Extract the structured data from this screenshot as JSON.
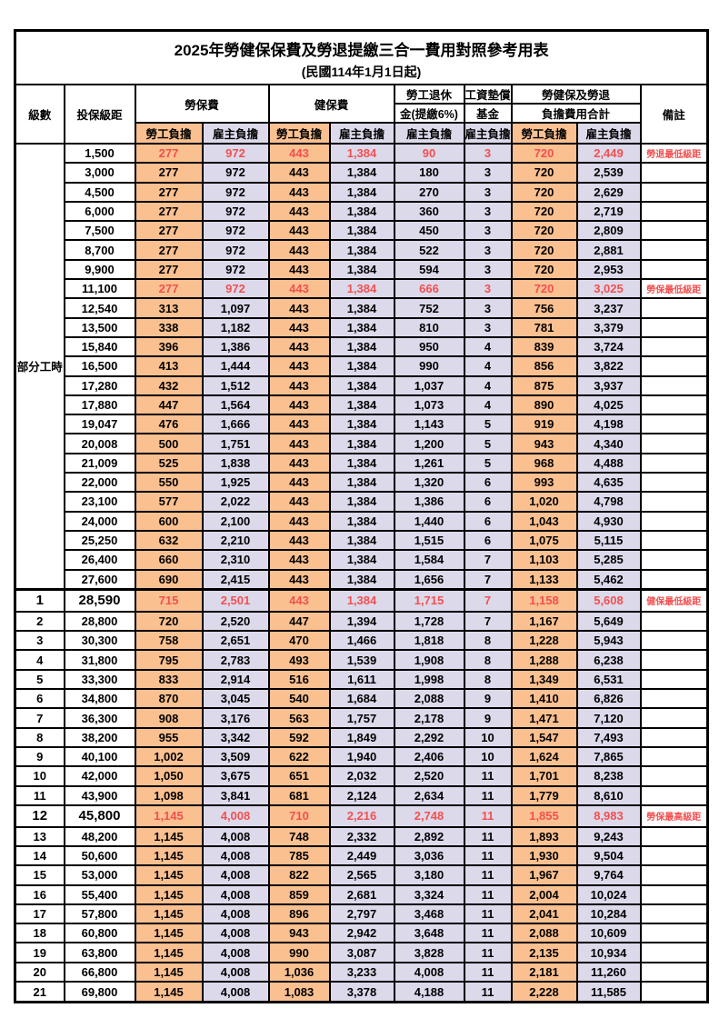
{
  "title": "2025年勞健保保費及勞退提繳三合一費用對照參考用表",
  "subtitle": "(民國114年1月1日起)",
  "colors": {
    "employee_bg": "#FAC090",
    "employer_bg": "#DCD9EB",
    "highlight_red": "#F25050",
    "border": "#000000"
  },
  "header": {
    "level": "級數",
    "salary": "投保級距",
    "labor": "勞保費",
    "health": "健保費",
    "pension_line1": "勞工退休",
    "pension_line2": "金(提繳6%)",
    "fund_line1": "工資墊償",
    "fund_line2": "基金",
    "total_line1": "勞健保及勞退",
    "total_line2": "負擔費用合計",
    "note": "備註",
    "employee": "勞工負擔",
    "employer": "雇主負擔"
  },
  "table": {
    "part_time_label": "部分工時",
    "part_time_rowspan": 23,
    "value_columns": [
      "labor-fee-employee",
      "labor-fee-employer",
      "health-fee-employee",
      "health-fee-employer",
      "pension-employer",
      "wage-fund-employer",
      "total-employee",
      "total-employer"
    ],
    "rows": [
      {
        "level": "",
        "salary": "1,500",
        "values": [
          "277",
          "972",
          "443",
          "1,384",
          "90",
          "3",
          "720",
          "2,449"
        ],
        "note": "勞退最低級距",
        "red": true,
        "big": false,
        "thick": false
      },
      {
        "level": "",
        "salary": "3,000",
        "values": [
          "277",
          "972",
          "443",
          "1,384",
          "180",
          "3",
          "720",
          "2,539"
        ],
        "note": "",
        "red": false,
        "big": false,
        "thick": false
      },
      {
        "level": "",
        "salary": "4,500",
        "values": [
          "277",
          "972",
          "443",
          "1,384",
          "270",
          "3",
          "720",
          "2,629"
        ],
        "note": "",
        "red": false,
        "big": false,
        "thick": false
      },
      {
        "level": "",
        "salary": "6,000",
        "values": [
          "277",
          "972",
          "443",
          "1,384",
          "360",
          "3",
          "720",
          "2,719"
        ],
        "note": "",
        "red": false,
        "big": false,
        "thick": false
      },
      {
        "level": "",
        "salary": "7,500",
        "values": [
          "277",
          "972",
          "443",
          "1,384",
          "450",
          "3",
          "720",
          "2,809"
        ],
        "note": "",
        "red": false,
        "big": false,
        "thick": false
      },
      {
        "level": "",
        "salary": "8,700",
        "values": [
          "277",
          "972",
          "443",
          "1,384",
          "522",
          "3",
          "720",
          "2,881"
        ],
        "note": "",
        "red": false,
        "big": false,
        "thick": false
      },
      {
        "level": "",
        "salary": "9,900",
        "values": [
          "277",
          "972",
          "443",
          "1,384",
          "594",
          "3",
          "720",
          "2,953"
        ],
        "note": "",
        "red": false,
        "big": false,
        "thick": false
      },
      {
        "level": "",
        "salary": "11,100",
        "values": [
          "277",
          "972",
          "443",
          "1,384",
          "666",
          "3",
          "720",
          "3,025"
        ],
        "note": "勞保最低級距",
        "red": true,
        "big": false,
        "thick": false
      },
      {
        "level": "",
        "salary": "12,540",
        "values": [
          "313",
          "1,097",
          "443",
          "1,384",
          "752",
          "3",
          "756",
          "3,237"
        ],
        "note": "",
        "red": false,
        "big": false,
        "thick": false
      },
      {
        "level": "",
        "salary": "13,500",
        "values": [
          "338",
          "1,182",
          "443",
          "1,384",
          "810",
          "3",
          "781",
          "3,379"
        ],
        "note": "",
        "red": false,
        "big": false,
        "thick": false
      },
      {
        "level": "",
        "salary": "15,840",
        "values": [
          "396",
          "1,386",
          "443",
          "1,384",
          "950",
          "4",
          "839",
          "3,724"
        ],
        "note": "",
        "red": false,
        "big": false,
        "thick": false
      },
      {
        "level": "",
        "salary": "16,500",
        "values": [
          "413",
          "1,444",
          "443",
          "1,384",
          "990",
          "4",
          "856",
          "3,822"
        ],
        "note": "",
        "red": false,
        "big": false,
        "thick": false
      },
      {
        "level": "",
        "salary": "17,280",
        "values": [
          "432",
          "1,512",
          "443",
          "1,384",
          "1,037",
          "4",
          "875",
          "3,937"
        ],
        "note": "",
        "red": false,
        "big": false,
        "thick": false
      },
      {
        "level": "",
        "salary": "17,880",
        "values": [
          "447",
          "1,564",
          "443",
          "1,384",
          "1,073",
          "4",
          "890",
          "4,025"
        ],
        "note": "",
        "red": false,
        "big": false,
        "thick": false
      },
      {
        "level": "",
        "salary": "19,047",
        "values": [
          "476",
          "1,666",
          "443",
          "1,384",
          "1,143",
          "5",
          "919",
          "4,198"
        ],
        "note": "",
        "red": false,
        "big": false,
        "thick": false
      },
      {
        "level": "",
        "salary": "20,008",
        "values": [
          "500",
          "1,751",
          "443",
          "1,384",
          "1,200",
          "5",
          "943",
          "4,340"
        ],
        "note": "",
        "red": false,
        "big": false,
        "thick": false
      },
      {
        "level": "",
        "salary": "21,009",
        "values": [
          "525",
          "1,838",
          "443",
          "1,384",
          "1,261",
          "5",
          "968",
          "4,488"
        ],
        "note": "",
        "red": false,
        "big": false,
        "thick": false
      },
      {
        "level": "",
        "salary": "22,000",
        "values": [
          "550",
          "1,925",
          "443",
          "1,384",
          "1,320",
          "6",
          "993",
          "4,635"
        ],
        "note": "",
        "red": false,
        "big": false,
        "thick": false
      },
      {
        "level": "",
        "salary": "23,100",
        "values": [
          "577",
          "2,022",
          "443",
          "1,384",
          "1,386",
          "6",
          "1,020",
          "4,798"
        ],
        "note": "",
        "red": false,
        "big": false,
        "thick": false
      },
      {
        "level": "",
        "salary": "24,000",
        "values": [
          "600",
          "2,100",
          "443",
          "1,384",
          "1,440",
          "6",
          "1,043",
          "4,930"
        ],
        "note": "",
        "red": false,
        "big": false,
        "thick": false
      },
      {
        "level": "",
        "salary": "25,250",
        "values": [
          "632",
          "2,210",
          "443",
          "1,384",
          "1,515",
          "6",
          "1,075",
          "5,115"
        ],
        "note": "",
        "red": false,
        "big": false,
        "thick": false
      },
      {
        "level": "",
        "salary": "26,400",
        "values": [
          "660",
          "2,310",
          "443",
          "1,384",
          "1,584",
          "7",
          "1,103",
          "5,285"
        ],
        "note": "",
        "red": false,
        "big": false,
        "thick": false
      },
      {
        "level": "",
        "salary": "27,600",
        "values": [
          "690",
          "2,415",
          "443",
          "1,384",
          "1,656",
          "7",
          "1,133",
          "5,462"
        ],
        "note": "",
        "red": false,
        "big": false,
        "thick": false
      },
      {
        "level": "1",
        "salary": "28,590",
        "values": [
          "715",
          "2,501",
          "443",
          "1,384",
          "1,715",
          "7",
          "1,158",
          "5,608"
        ],
        "note": "健保最低級距",
        "red": true,
        "big": true,
        "thick": true
      },
      {
        "level": "2",
        "salary": "28,800",
        "values": [
          "720",
          "2,520",
          "447",
          "1,394",
          "1,728",
          "7",
          "1,167",
          "5,649"
        ],
        "note": "",
        "red": false,
        "big": false,
        "thick": false
      },
      {
        "level": "3",
        "salary": "30,300",
        "values": [
          "758",
          "2,651",
          "470",
          "1,466",
          "1,818",
          "8",
          "1,228",
          "5,943"
        ],
        "note": "",
        "red": false,
        "big": false,
        "thick": false
      },
      {
        "level": "4",
        "salary": "31,800",
        "values": [
          "795",
          "2,783",
          "493",
          "1,539",
          "1,908",
          "8",
          "1,288",
          "6,238"
        ],
        "note": "",
        "red": false,
        "big": false,
        "thick": false
      },
      {
        "level": "5",
        "salary": "33,300",
        "values": [
          "833",
          "2,914",
          "516",
          "1,611",
          "1,998",
          "8",
          "1,349",
          "6,531"
        ],
        "note": "",
        "red": false,
        "big": false,
        "thick": false
      },
      {
        "level": "6",
        "salary": "34,800",
        "values": [
          "870",
          "3,045",
          "540",
          "1,684",
          "2,088",
          "9",
          "1,410",
          "6,826"
        ],
        "note": "",
        "red": false,
        "big": false,
        "thick": false
      },
      {
        "level": "7",
        "salary": "36,300",
        "values": [
          "908",
          "3,176",
          "563",
          "1,757",
          "2,178",
          "9",
          "1,471",
          "7,120"
        ],
        "note": "",
        "red": false,
        "big": false,
        "thick": false
      },
      {
        "level": "8",
        "salary": "38,200",
        "values": [
          "955",
          "3,342",
          "592",
          "1,849",
          "2,292",
          "10",
          "1,547",
          "7,493"
        ],
        "note": "",
        "red": false,
        "big": false,
        "thick": false
      },
      {
        "level": "9",
        "salary": "40,100",
        "values": [
          "1,002",
          "3,509",
          "622",
          "1,940",
          "2,406",
          "10",
          "1,624",
          "7,865"
        ],
        "note": "",
        "red": false,
        "big": false,
        "thick": false
      },
      {
        "level": "10",
        "salary": "42,000",
        "values": [
          "1,050",
          "3,675",
          "651",
          "2,032",
          "2,520",
          "11",
          "1,701",
          "8,238"
        ],
        "note": "",
        "red": false,
        "big": false,
        "thick": false
      },
      {
        "level": "11",
        "salary": "43,900",
        "values": [
          "1,098",
          "3,841",
          "681",
          "2,124",
          "2,634",
          "11",
          "1,779",
          "8,610"
        ],
        "note": "",
        "red": false,
        "big": false,
        "thick": false
      },
      {
        "level": "12",
        "salary": "45,800",
        "values": [
          "1,145",
          "4,008",
          "710",
          "2,216",
          "2,748",
          "11",
          "1,855",
          "8,983"
        ],
        "note": "勞保最高級距",
        "red": true,
        "big": true,
        "thick": false
      },
      {
        "level": "13",
        "salary": "48,200",
        "values": [
          "1,145",
          "4,008",
          "748",
          "2,332",
          "2,892",
          "11",
          "1,893",
          "9,243"
        ],
        "note": "",
        "red": false,
        "big": false,
        "thick": false
      },
      {
        "level": "14",
        "salary": "50,600",
        "values": [
          "1,145",
          "4,008",
          "785",
          "2,449",
          "3,036",
          "11",
          "1,930",
          "9,504"
        ],
        "note": "",
        "red": false,
        "big": false,
        "thick": false
      },
      {
        "level": "15",
        "salary": "53,000",
        "values": [
          "1,145",
          "4,008",
          "822",
          "2,565",
          "3,180",
          "11",
          "1,967",
          "9,764"
        ],
        "note": "",
        "red": false,
        "big": false,
        "thick": false
      },
      {
        "level": "16",
        "salary": "55,400",
        "values": [
          "1,145",
          "4,008",
          "859",
          "2,681",
          "3,324",
          "11",
          "2,004",
          "10,024"
        ],
        "note": "",
        "red": false,
        "big": false,
        "thick": false
      },
      {
        "level": "17",
        "salary": "57,800",
        "values": [
          "1,145",
          "4,008",
          "896",
          "2,797",
          "3,468",
          "11",
          "2,041",
          "10,284"
        ],
        "note": "",
        "red": false,
        "big": false,
        "thick": false
      },
      {
        "level": "18",
        "salary": "60,800",
        "values": [
          "1,145",
          "4,008",
          "943",
          "2,942",
          "3,648",
          "11",
          "2,088",
          "10,609"
        ],
        "note": "",
        "red": false,
        "big": false,
        "thick": false
      },
      {
        "level": "19",
        "salary": "63,800",
        "values": [
          "1,145",
          "4,008",
          "990",
          "3,087",
          "3,828",
          "11",
          "2,135",
          "10,934"
        ],
        "note": "",
        "red": false,
        "big": false,
        "thick": false
      },
      {
        "level": "20",
        "salary": "66,800",
        "values": [
          "1,145",
          "4,008",
          "1,036",
          "3,233",
          "4,008",
          "11",
          "2,181",
          "11,260"
        ],
        "note": "",
        "red": false,
        "big": false,
        "thick": false
      },
      {
        "level": "21",
        "salary": "69,800",
        "values": [
          "1,145",
          "4,008",
          "1,083",
          "3,378",
          "4,188",
          "11",
          "2,228",
          "11,585"
        ],
        "note": "",
        "red": false,
        "big": false,
        "thick": false
      }
    ]
  }
}
